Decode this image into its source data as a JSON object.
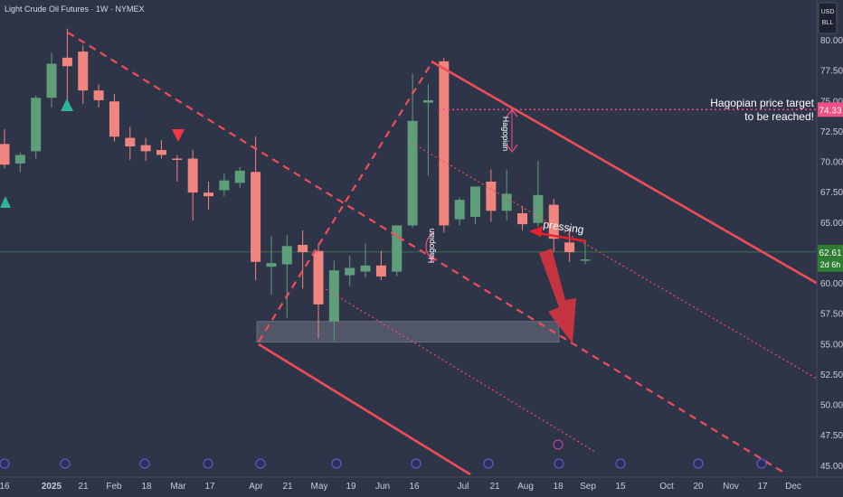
{
  "chart_data": {
    "type": "candlestick",
    "title": "Light Crude Oil Futures · 1W · NYMEX",
    "currency_badges": [
      "USD",
      "BLL"
    ],
    "y_axis": {
      "min": 45.0,
      "max": 80.0,
      "ticks": [
        "80.00",
        "77.50",
        "75.00",
        "72.50",
        "70.00",
        "67.50",
        "65.00",
        "62.50",
        "60.00",
        "57.50",
        "55.00",
        "52.50",
        "50.00",
        "47.50",
        "45.00"
      ]
    },
    "x_axis_labels": [
      "16",
      "2025",
      "21",
      "Feb",
      "18",
      "Mar",
      "17",
      "Apr",
      "21",
      "May",
      "19",
      "Jun",
      "16",
      "Jul",
      "21",
      "Aug",
      "18",
      "Sep",
      "15",
      "Oct",
      "20",
      "Nov",
      "17",
      "Dec"
    ],
    "candles": [
      {
        "o": 71.5,
        "h": 72.7,
        "l": 69.5,
        "c": 69.8
      },
      {
        "o": 69.9,
        "h": 70.8,
        "l": 69.2,
        "c": 70.6
      },
      {
        "o": 70.9,
        "h": 75.5,
        "l": 70.3,
        "c": 75.3
      },
      {
        "o": 75.3,
        "h": 79.0,
        "l": 74.5,
        "c": 78.1
      },
      {
        "o": 78.6,
        "h": 81.0,
        "l": 74.6,
        "c": 77.9
      },
      {
        "o": 79.1,
        "h": 79.6,
        "l": 74.8,
        "c": 75.9
      },
      {
        "o": 75.9,
        "h": 76.4,
        "l": 74.5,
        "c": 75.1
      },
      {
        "o": 75.0,
        "h": 75.6,
        "l": 71.7,
        "c": 72.1
      },
      {
        "o": 72.0,
        "h": 72.9,
        "l": 70.2,
        "c": 71.3
      },
      {
        "o": 71.4,
        "h": 72.0,
        "l": 70.1,
        "c": 70.9
      },
      {
        "o": 71.0,
        "h": 71.8,
        "l": 70.3,
        "c": 70.6
      },
      {
        "o": 70.3,
        "h": 70.6,
        "l": 68.4,
        "c": 70.2
      },
      {
        "o": 70.3,
        "h": 71.0,
        "l": 65.2,
        "c": 67.5
      },
      {
        "o": 67.5,
        "h": 68.4,
        "l": 66.1,
        "c": 67.2
      },
      {
        "o": 67.7,
        "h": 69.1,
        "l": 67.2,
        "c": 68.5
      },
      {
        "o": 68.3,
        "h": 69.6,
        "l": 67.9,
        "c": 69.3
      },
      {
        "o": 69.2,
        "h": 72.1,
        "l": 60.3,
        "c": 61.8
      },
      {
        "o": 61.4,
        "h": 63.9,
        "l": 59.1,
        "c": 61.7
      },
      {
        "o": 61.6,
        "h": 64.0,
        "l": 57.2,
        "c": 63.1
      },
      {
        "o": 63.2,
        "h": 64.4,
        "l": 59.6,
        "c": 62.6
      },
      {
        "o": 62.7,
        "h": 63.3,
        "l": 55.5,
        "c": 58.3
      },
      {
        "o": 56.9,
        "h": 61.9,
        "l": 55.3,
        "c": 61.1
      },
      {
        "o": 60.7,
        "h": 62.3,
        "l": 59.8,
        "c": 61.3
      },
      {
        "o": 61.0,
        "h": 63.3,
        "l": 60.5,
        "c": 61.5
      },
      {
        "o": 61.5,
        "h": 62.7,
        "l": 60.3,
        "c": 60.6
      },
      {
        "o": 61.0,
        "h": 64.8,
        "l": 60.6,
        "c": 64.8
      },
      {
        "o": 64.8,
        "h": 77.3,
        "l": 64.6,
        "c": 73.4
      },
      {
        "o": 74.9,
        "h": 76.4,
        "l": 68.9,
        "c": 75.1
      },
      {
        "o": 78.3,
        "h": 78.6,
        "l": 64.2,
        "c": 64.8
      },
      {
        "o": 65.3,
        "h": 67.1,
        "l": 64.8,
        "c": 66.9
      },
      {
        "o": 65.5,
        "h": 67.9,
        "l": 64.9,
        "c": 68.0
      },
      {
        "o": 68.4,
        "h": 69.4,
        "l": 65.1,
        "c": 66.0
      },
      {
        "o": 66.0,
        "h": 69.4,
        "l": 65.2,
        "c": 67.4
      },
      {
        "o": 65.8,
        "h": 66.4,
        "l": 64.4,
        "c": 64.9
      },
      {
        "o": 65.0,
        "h": 70.1,
        "l": 64.7,
        "c": 67.3
      },
      {
        "o": 66.5,
        "h": 67.0,
        "l": 62.6,
        "c": 63.7
      },
      {
        "o": 63.4,
        "h": 64.6,
        "l": 61.8,
        "c": 62.6
      },
      {
        "o": 61.9,
        "h": 63.6,
        "l": 61.6,
        "c": 62.0
      }
    ],
    "current_price": {
      "value": 62.61,
      "label": "62.61",
      "countdown": "2d 6h"
    },
    "target_price": {
      "value": 74.33,
      "label": "74.33"
    },
    "support_zone": {
      "from": 55.2,
      "to": 56.9
    },
    "annotations": {
      "target_note_line1": "Hagopian price target",
      "target_note_line2": "to be reached!",
      "pressing": "pressing",
      "hagopian_1": "Hagopian",
      "hagopian_2": "Hagopian"
    },
    "colors": {
      "background": "#2f3548",
      "bull": "#5f9e7b",
      "bear": "#f0857f",
      "channel": "#ef4d57",
      "target": "#f24e86",
      "marker_up": "#2fb39b",
      "marker_down": "#f23645",
      "price_line": "#4caf50"
    }
  }
}
